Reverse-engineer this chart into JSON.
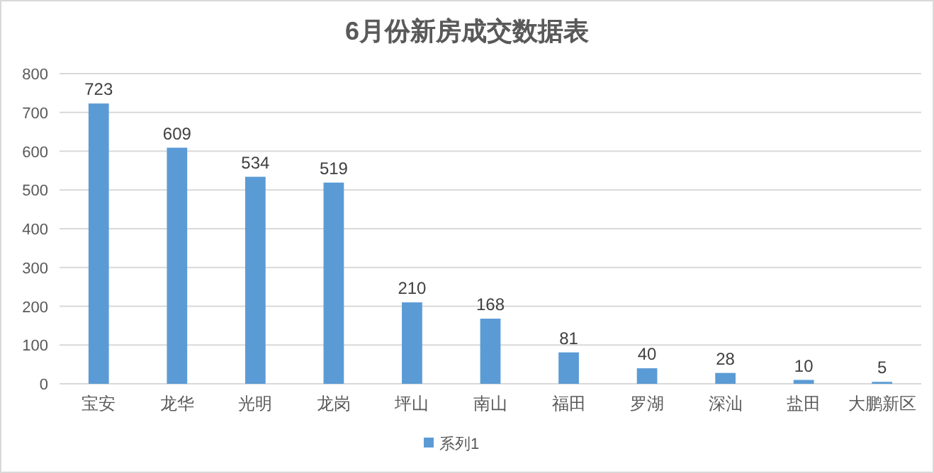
{
  "chart_data": {
    "type": "bar",
    "title": "6月份新房成交数据表",
    "categories": [
      "宝安",
      "龙华",
      "光明",
      "龙岗",
      "坪山",
      "南山",
      "福田",
      "罗湖",
      "深汕",
      "盐田",
      "大鹏新区"
    ],
    "series": [
      {
        "name": "系列1",
        "color": "#5b9bd5",
        "values": [
          723,
          609,
          534,
          519,
          210,
          168,
          81,
          40,
          28,
          10,
          5
        ]
      }
    ],
    "ylim": [
      0,
      800
    ],
    "yticks": [
      0,
      100,
      200,
      300,
      400,
      500,
      600,
      700,
      800
    ],
    "grid": "y",
    "data_labels": true,
    "legend": "bottom"
  }
}
